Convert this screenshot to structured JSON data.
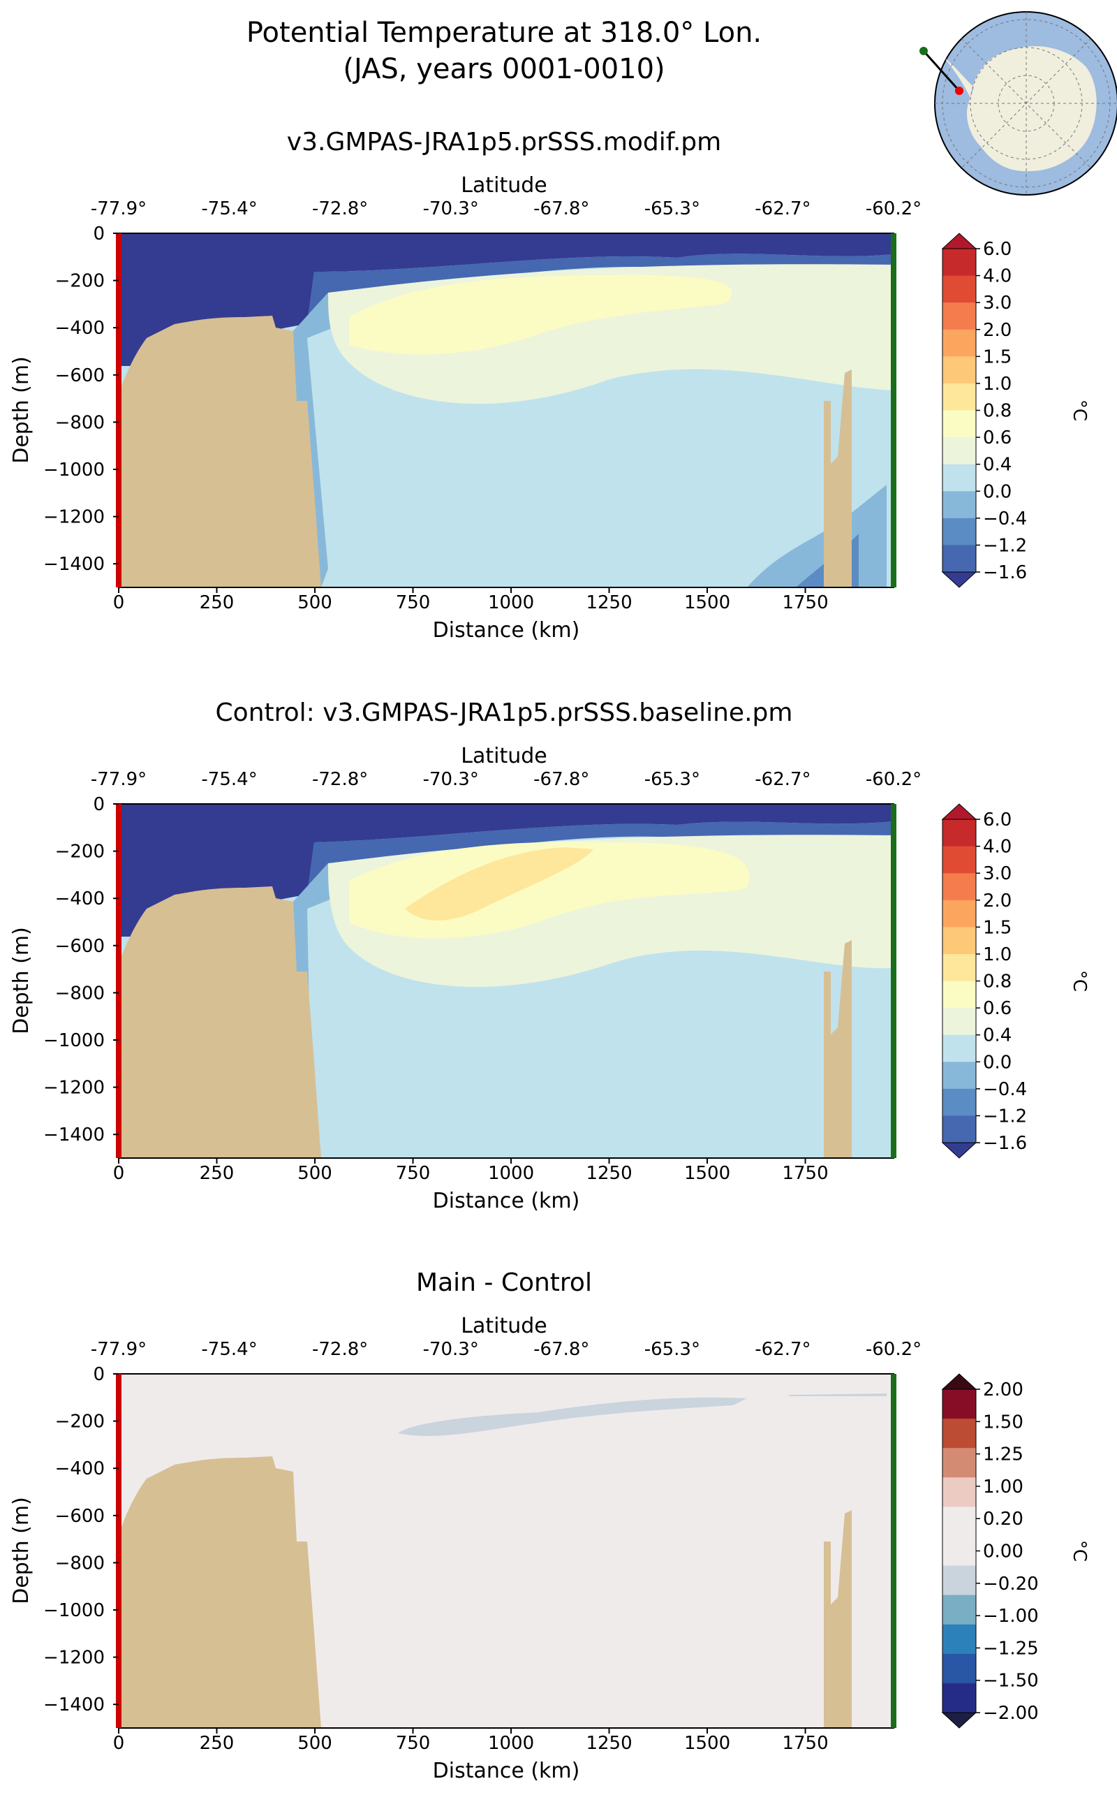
{
  "figure": {
    "title_line1": "Potential Temperature at 318.0° Lon.",
    "title_line2": "(JAS, years 0001-0010)"
  },
  "chart_data": [
    {
      "type": "heatmap",
      "title": "v3.GMPAS-JRA1p5.prSSS.modif.pm",
      "xlabel": "Distance (km)",
      "ylabel": "Depth (m)",
      "top_xlabel": "Latitude",
      "xlim": [
        0,
        1975
      ],
      "ylim": [
        -1500,
        0
      ],
      "xticks": [
        "0",
        "250",
        "500",
        "750",
        "1000",
        "1250",
        "1500",
        "1750"
      ],
      "yticks": [
        "0",
        "−200",
        "−400",
        "−600",
        "−800",
        "−1000",
        "−1200",
        "−1400"
      ],
      "top_ticks": [
        "-77.9°",
        "-75.4°",
        "-72.8°",
        "-70.3°",
        "-67.8°",
        "-65.3°",
        "-62.7°",
        "-60.2°"
      ],
      "colorbar_unit": "°C",
      "colorbar_levels": [
        "6.0",
        "4.0",
        "3.0",
        "2.0",
        "1.5",
        "1.0",
        "0.8",
        "0.6",
        "0.4",
        "0.0",
        "−0.4",
        "−1.2",
        "−1.6"
      ],
      "colorbar_colors": [
        "#b2182b",
        "#c62a2a",
        "#e04b33",
        "#f47c4d",
        "#fba55e",
        "#fdc877",
        "#fee79a",
        "#fbfcc4",
        "#ecf4dc",
        "#c0e2ec",
        "#88b8d9",
        "#5b8cc3",
        "#4568b0",
        "#343c91"
      ],
      "warm_core_max": "0.8",
      "cold_surface_min": "−1.6"
    },
    {
      "type": "heatmap",
      "title": "Control: v3.GMPAS-JRA1p5.prSSS.baseline.pm",
      "xlabel": "Distance (km)",
      "ylabel": "Depth (m)",
      "top_xlabel": "Latitude",
      "xlim": [
        0,
        1975
      ],
      "ylim": [
        -1500,
        0
      ],
      "xticks": [
        "0",
        "250",
        "500",
        "750",
        "1000",
        "1250",
        "1500",
        "1750"
      ],
      "yticks": [
        "0",
        "−200",
        "−400",
        "−600",
        "−800",
        "−1000",
        "−1200",
        "−1400"
      ],
      "top_ticks": [
        "-77.9°",
        "-75.4°",
        "-72.8°",
        "-70.3°",
        "-67.8°",
        "-65.3°",
        "-62.7°",
        "-60.2°"
      ],
      "colorbar_unit": "°C",
      "colorbar_levels": [
        "6.0",
        "4.0",
        "3.0",
        "2.0",
        "1.5",
        "1.0",
        "0.8",
        "0.6",
        "0.4",
        "0.0",
        "−0.4",
        "−1.2",
        "−1.6"
      ],
      "colorbar_colors": [
        "#b2182b",
        "#c62a2a",
        "#e04b33",
        "#f47c4d",
        "#fba55e",
        "#fdc877",
        "#fee79a",
        "#fbfcc4",
        "#ecf4dc",
        "#c0e2ec",
        "#88b8d9",
        "#5b8cc3",
        "#4568b0",
        "#343c91"
      ],
      "warm_core_max": "1.0",
      "cold_surface_min": "−1.6"
    },
    {
      "type": "heatmap",
      "title": "Main - Control",
      "xlabel": "Distance (km)",
      "ylabel": "Depth (m)",
      "top_xlabel": "Latitude",
      "xlim": [
        0,
        1975
      ],
      "ylim": [
        -1500,
        0
      ],
      "xticks": [
        "0",
        "250",
        "500",
        "750",
        "1000",
        "1250",
        "1500",
        "1750"
      ],
      "yticks": [
        "0",
        "−200",
        "−400",
        "−600",
        "−800",
        "−1000",
        "−1200",
        "−1400"
      ],
      "top_ticks": [
        "-77.9°",
        "-75.4°",
        "-72.8°",
        "-70.3°",
        "-67.8°",
        "-65.3°",
        "-62.7°",
        "-60.2°"
      ],
      "colorbar_unit": "°C",
      "colorbar_levels": [
        "2.00",
        "1.50",
        "1.25",
        "1.00",
        "0.20",
        "0.00",
        "−0.20",
        "−1.00",
        "−1.25",
        "−1.50",
        "−2.00"
      ],
      "colorbar_colors": [
        "#3a0a14",
        "#870d26",
        "#bc4c33",
        "#d48b73",
        "#eccbc2",
        "#f0ebeb",
        "#f0ebeb",
        "#c9d4dc",
        "#79aec5",
        "#2c81bb",
        "#2a56a6",
        "#252c88",
        "#1e1e44"
      ],
      "difference_min": "−0.20"
    }
  ],
  "colors": {
    "land": "#d7bf94",
    "start_marker": "#cc0000",
    "end_marker": "#1a6e1a",
    "globe_ocean": "#9ebbe0",
    "globe_land": "#f0eedd"
  }
}
